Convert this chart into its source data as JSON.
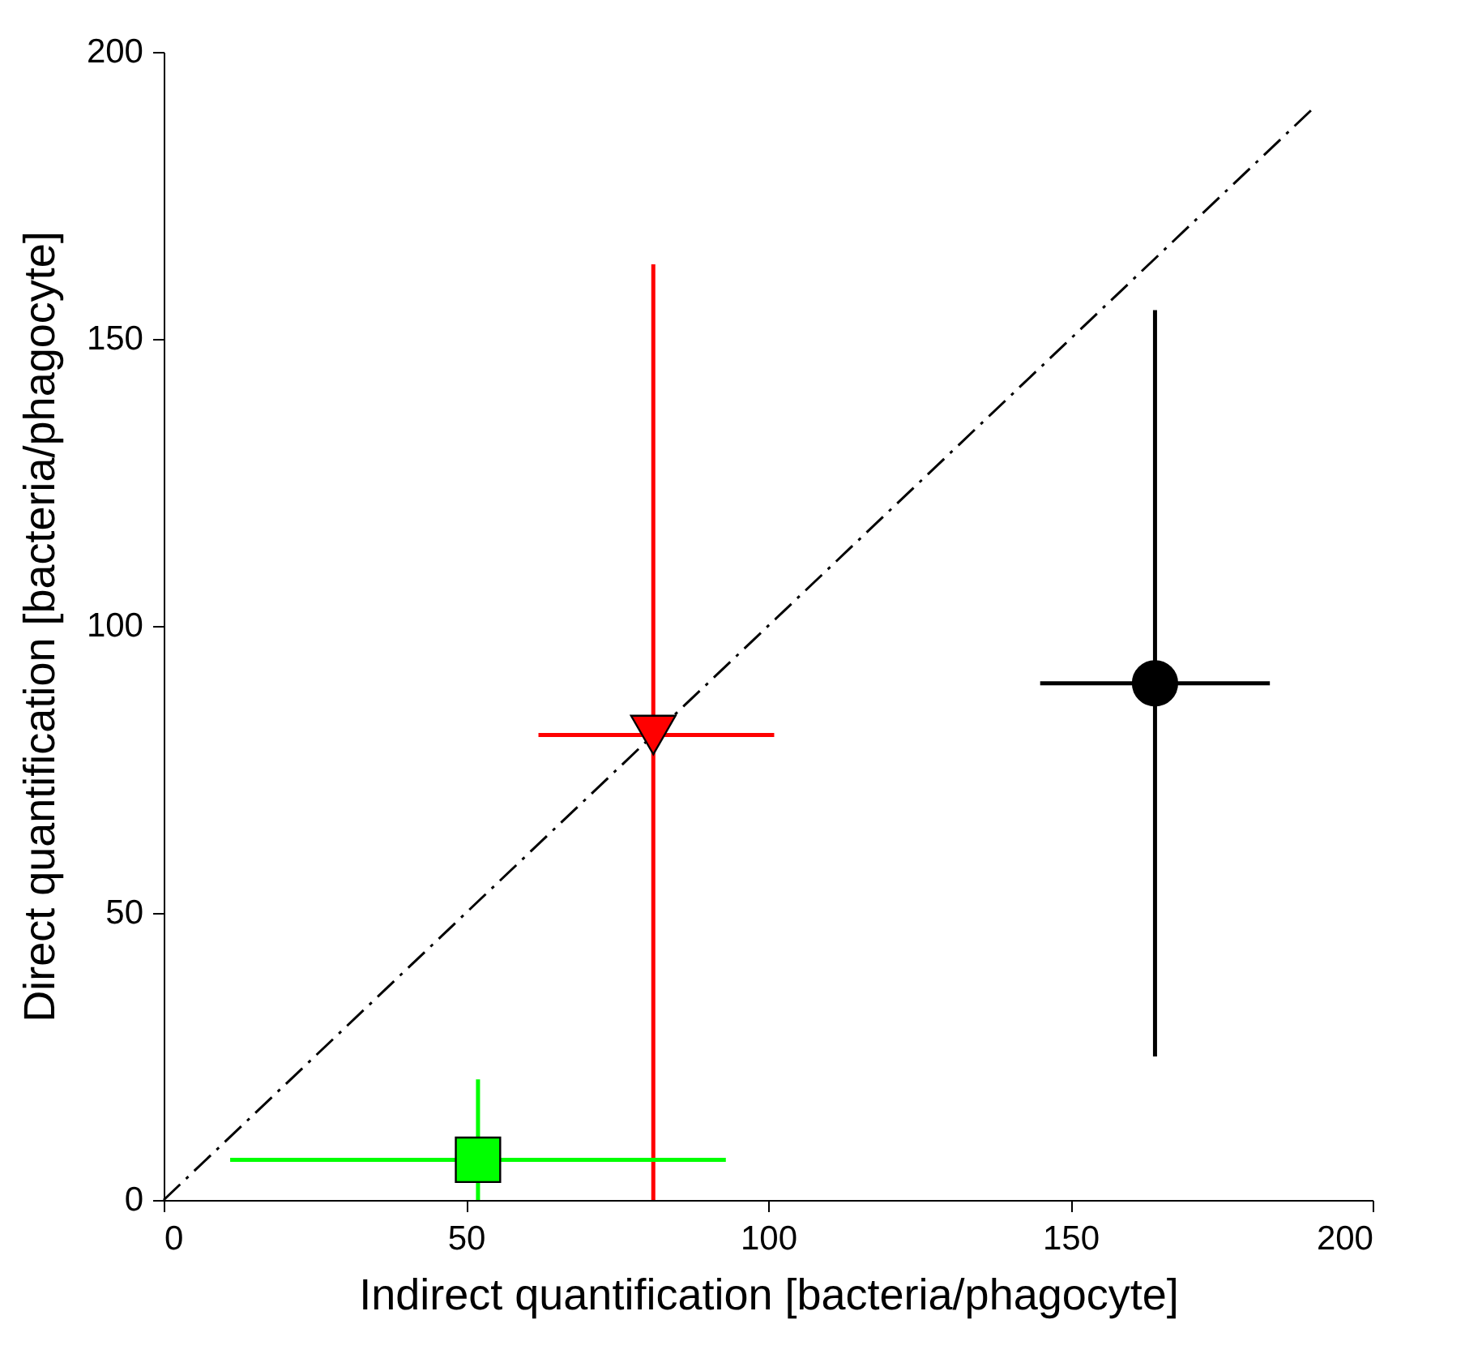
{
  "chart_data": {
    "type": "scatter",
    "xlabel": "Indirect quantification [bacteria/phagocyte]",
    "ylabel": "Direct quantification [bacteria/phagocyte]",
    "xlim": [
      0,
      200
    ],
    "xticks": [
      0,
      50,
      100,
      150,
      200
    ],
    "ylim": [
      0,
      200
    ],
    "yticks": [
      0,
      50,
      100,
      150,
      200
    ],
    "grid": false,
    "series": [
      {
        "type": "line",
        "color": "#000000",
        "line_style": "dashed",
        "x": [
          0,
          190
        ],
        "values": [
          0,
          190
        ]
      },
      {
        "color": "#000000",
        "marker": "circle",
        "x": [
          164
        ],
        "values": [
          90
        ],
        "errors": [
          [
            25,
            155
          ]
        ],
        "xerrors": [
          [
            145,
            183
          ]
        ]
      },
      {
        "color": "#ff0000",
        "marker": "triangle",
        "x": [
          81
        ],
        "values": [
          81
        ],
        "errors": [
          [
            0,
            163
          ]
        ],
        "xerrors": [
          [
            62,
            101
          ]
        ]
      },
      {
        "color": "#00ff00",
        "marker": "square",
        "x": [
          52
        ],
        "values": [
          7
        ],
        "errors": [
          [
            0,
            21
          ]
        ],
        "xerrors": [
          [
            11,
            93
          ]
        ]
      }
    ]
  }
}
